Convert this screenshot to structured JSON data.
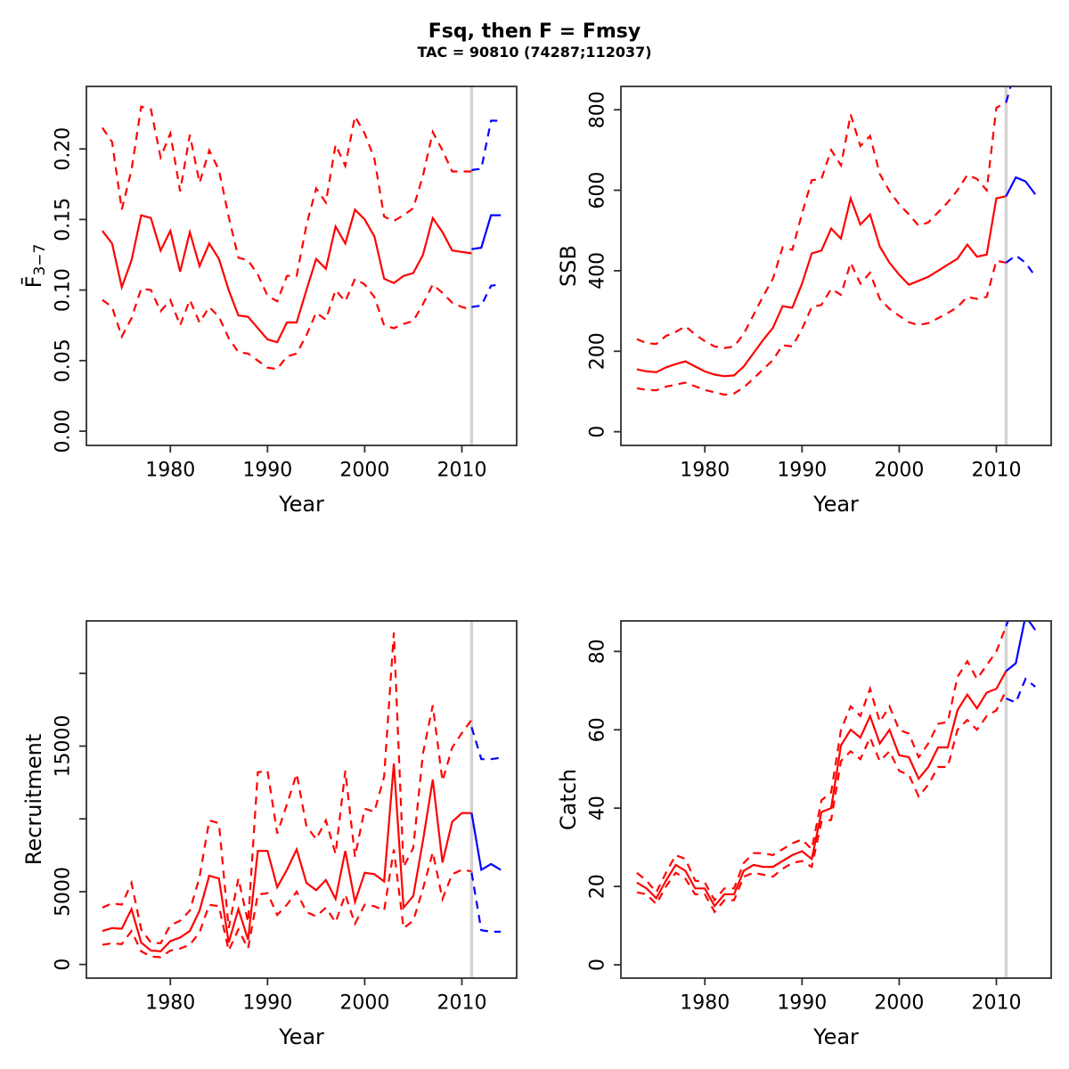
{
  "header": {
    "title": "Fsq, then F = Fmsy",
    "subtitle": "TAC = 90810 (74287;112037)"
  },
  "colors": {
    "historic": "#ff0000",
    "forecast": "#0000ff",
    "divider": "#d3d3d3",
    "frame": "#2f2f2f",
    "text": "#000000"
  },
  "x_axis": {
    "label": "Year",
    "lim": [
      1971.36,
      2015.64
    ],
    "ticks": [
      1980,
      1990,
      2000,
      2010
    ]
  },
  "divider_year": 2011,
  "hist_years": [
    1973,
    1974,
    1975,
    1976,
    1977,
    1978,
    1979,
    1980,
    1981,
    1982,
    1983,
    1984,
    1985,
    1986,
    1987,
    1988,
    1989,
    1990,
    1991,
    1992,
    1993,
    1994,
    1995,
    1996,
    1997,
    1998,
    1999,
    2000,
    2001,
    2002,
    2003,
    2004,
    2005,
    2006,
    2007,
    2008,
    2009,
    2010,
    2011
  ],
  "fcst_years": [
    2011,
    2012,
    2013,
    2014
  ],
  "chart_data": [
    {
      "id": "fbar",
      "type": "line",
      "ylabel": {
        "text": "F",
        "overline": true,
        "subscript": "3−7"
      },
      "ylim": [
        -0.0101,
        0.2443
      ],
      "yticks": [
        {
          "v": 0.0,
          "label": "0.00"
        },
        {
          "v": 0.05,
          "label": "0.05"
        },
        {
          "v": 0.1,
          "label": "0.10"
        },
        {
          "v": 0.15,
          "label": "0.15"
        },
        {
          "v": 0.2,
          "label": "0.20"
        }
      ],
      "historic": {
        "median": [
          0.142,
          0.133,
          0.102,
          0.121,
          0.153,
          0.151,
          0.128,
          0.142,
          0.113,
          0.141,
          0.117,
          0.133,
          0.122,
          0.1,
          0.082,
          0.081,
          0.073,
          0.065,
          0.063,
          0.077,
          0.077,
          0.1,
          0.122,
          0.115,
          0.145,
          0.133,
          0.157,
          0.15,
          0.138,
          0.108,
          0.105,
          0.11,
          0.112,
          0.125,
          0.151,
          0.141,
          0.128,
          0.127,
          0.126
        ],
        "upper": [
          0.215,
          0.205,
          0.157,
          0.185,
          0.23,
          0.228,
          0.194,
          0.211,
          0.17,
          0.21,
          0.176,
          0.199,
          0.185,
          0.152,
          0.123,
          0.121,
          0.111,
          0.096,
          0.092,
          0.11,
          0.11,
          0.146,
          0.172,
          0.162,
          0.203,
          0.188,
          0.223,
          0.211,
          0.193,
          0.152,
          0.149,
          0.153,
          0.158,
          0.181,
          0.212,
          0.199,
          0.184,
          0.184,
          0.184
        ],
        "lower": [
          0.093,
          0.088,
          0.067,
          0.08,
          0.101,
          0.1,
          0.085,
          0.093,
          0.075,
          0.093,
          0.077,
          0.088,
          0.081,
          0.066,
          0.056,
          0.055,
          0.05,
          0.045,
          0.044,
          0.053,
          0.055,
          0.068,
          0.084,
          0.079,
          0.1,
          0.092,
          0.108,
          0.104,
          0.095,
          0.075,
          0.073,
          0.076,
          0.078,
          0.09,
          0.104,
          0.098,
          0.091,
          0.088,
          0.086
        ]
      },
      "forecast": {
        "median": [
          0.129,
          0.13,
          0.153,
          0.153
        ],
        "upper": [
          0.185,
          0.186,
          0.22,
          0.22
        ],
        "lower": [
          0.088,
          0.089,
          0.103,
          0.104
        ]
      }
    },
    {
      "id": "ssb",
      "type": "line",
      "ylabel": {
        "text": "SSB"
      },
      "ylim": [
        -34,
        858
      ],
      "yticks": [
        {
          "v": 0,
          "label": "0"
        },
        {
          "v": 200,
          "label": "200"
        },
        {
          "v": 400,
          "label": "400"
        },
        {
          "v": 600,
          "label": "600"
        },
        {
          "v": 800,
          "label": "800"
        }
      ],
      "historic": {
        "median": [
          155,
          150,
          148,
          160,
          168,
          175,
          162,
          150,
          142,
          138,
          140,
          162,
          195,
          228,
          258,
          312,
          308,
          368,
          443,
          450,
          505,
          480,
          580,
          515,
          540,
          460,
          420,
          390,
          365,
          375,
          385,
          400,
          415,
          430,
          465,
          435,
          440,
          580,
          585
        ],
        "upper": [
          230,
          220,
          218,
          238,
          248,
          262,
          242,
          225,
          212,
          208,
          212,
          243,
          290,
          337,
          380,
          458,
          452,
          542,
          625,
          628,
          700,
          662,
          788,
          710,
          735,
          640,
          598,
          565,
          540,
          512,
          520,
          545,
          570,
          600,
          638,
          628,
          600,
          805,
          818
        ],
        "lower": [
          108,
          104,
          103,
          112,
          117,
          122,
          113,
          104,
          98,
          92,
          95,
          110,
          132,
          155,
          178,
          215,
          212,
          255,
          310,
          315,
          355,
          340,
          420,
          368,
          395,
          330,
          305,
          288,
          272,
          265,
          270,
          282,
          295,
          310,
          335,
          330,
          335,
          425,
          420
        ]
      },
      "forecast": {
        "median": [
          585,
          632,
          622,
          590
        ],
        "upper": [
          818,
          905,
          950,
          920
        ],
        "lower": [
          420,
          438,
          420,
          386
        ]
      }
    },
    {
      "id": "rec",
      "type": "line",
      "ylabel": {
        "text": "Recruitment"
      },
      "ylim": [
        -940,
        23600
      ],
      "yticks": [
        {
          "v": 0,
          "label": "0"
        },
        {
          "v": 5000,
          "label": "5000"
        },
        {
          "v": 10000,
          "label": ""
        },
        {
          "v": 15000,
          "label": "15000"
        },
        {
          "v": 20000,
          "label": ""
        }
      ],
      "historic": {
        "median": [
          2300,
          2500,
          2450,
          3800,
          1500,
          950,
          900,
          1600,
          1850,
          2300,
          3700,
          6100,
          5900,
          1500,
          3800,
          1700,
          7800,
          7800,
          5300,
          6500,
          7900,
          5600,
          5100,
          5800,
          4500,
          7800,
          4300,
          6300,
          6200,
          5700,
          13800,
          3900,
          4700,
          8500,
          12700,
          7000,
          9800,
          10400,
          10400
        ],
        "upper": [
          3900,
          4200,
          4100,
          5600,
          2400,
          1500,
          1450,
          2700,
          3000,
          3700,
          6000,
          9900,
          9700,
          2500,
          5900,
          2900,
          13200,
          13300,
          9000,
          11000,
          13100,
          9500,
          8600,
          9900,
          7600,
          13300,
          7400,
          10700,
          10500,
          12900,
          22800,
          6700,
          8000,
          14500,
          17800,
          12600,
          14900,
          15900,
          16800
        ],
        "lower": [
          1350,
          1450,
          1400,
          2300,
          900,
          550,
          500,
          950,
          1100,
          1350,
          2200,
          4100,
          4000,
          950,
          2400,
          1100,
          4800,
          4900,
          3400,
          4100,
          5000,
          3600,
          3300,
          3900,
          2900,
          4800,
          2800,
          4100,
          4000,
          3700,
          7900,
          2500,
          3000,
          5200,
          7700,
          4500,
          6200,
          6500,
          6400
        ]
      },
      "forecast": {
        "median": [
          10400,
          6500,
          6900,
          6500
        ],
        "upper": [
          16300,
          14100,
          14100,
          14200
        ],
        "lower": [
          6300,
          2350,
          2250,
          2250
        ]
      }
    },
    {
      "id": "catch",
      "type": "line",
      "ylabel": {
        "text": "Catch"
      },
      "ylim": [
        -3.4,
        87.8
      ],
      "yticks": [
        {
          "v": 0,
          "label": "0"
        },
        {
          "v": 20,
          "label": "20"
        },
        {
          "v": 40,
          "label": "40"
        },
        {
          "v": 60,
          "label": "60"
        },
        {
          "v": 80,
          "label": "80"
        }
      ],
      "historic": {
        "median": [
          21,
          19.5,
          17,
          21.5,
          25.5,
          24,
          19.5,
          19.5,
          15,
          18,
          18,
          24,
          25.5,
          25,
          25,
          26.5,
          28,
          29,
          27,
          39,
          40,
          56,
          60,
          58,
          63.5,
          56.5,
          60,
          53.5,
          53,
          47.5,
          50.5,
          55.5,
          55.5,
          65,
          69,
          65.5,
          69.5,
          70.5,
          75
        ],
        "upper": [
          23.5,
          21.5,
          18.5,
          23.5,
          28,
          27,
          21.5,
          21,
          16.5,
          19.5,
          19.5,
          26,
          28.5,
          28.5,
          28,
          29.5,
          31,
          32,
          29.5,
          42,
          44,
          60,
          66,
          63.5,
          70.5,
          62,
          66,
          60,
          59,
          53,
          56.5,
          61.5,
          62,
          73.5,
          77.5,
          73,
          76.5,
          80,
          86.5
        ],
        "lower": [
          18.5,
          18,
          15.5,
          20,
          23.5,
          22,
          18,
          18,
          13.5,
          16.5,
          16.5,
          22.5,
          23.5,
          23,
          22.5,
          24.5,
          26,
          26.5,
          25,
          36.5,
          37,
          52,
          54.5,
          52.5,
          58,
          52,
          54.5,
          49.5,
          48.5,
          43,
          46,
          50.5,
          50.5,
          60,
          62.5,
          60,
          63.5,
          65,
          70
        ],
        "median_note": "solid red = historic median; dashed red = 90% interval"
      },
      "forecast": {
        "median": [
          75,
          77,
          89,
          85.5
        ],
        "upper": [
          86.5,
          93,
          96,
          94
        ],
        "lower": [
          68,
          67,
          73,
          71
        ]
      }
    }
  ]
}
